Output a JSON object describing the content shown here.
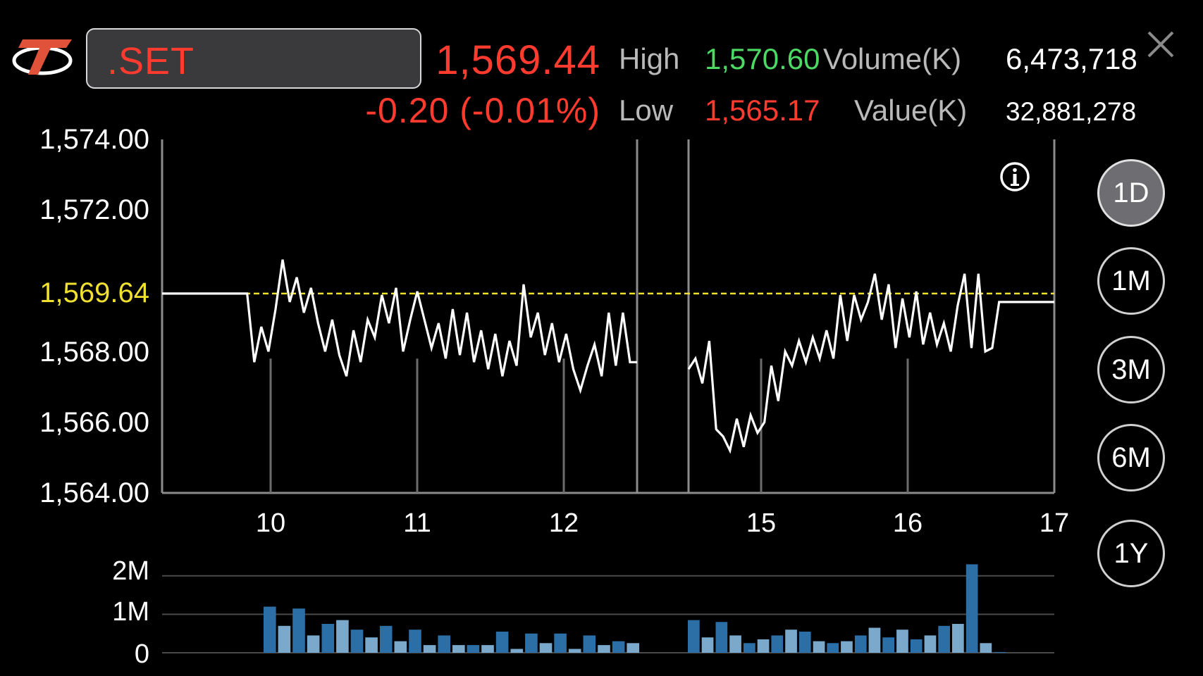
{
  "header": {
    "logo_icon": "settrade-logo",
    "symbol": ".SET",
    "last_price": "1,569.44",
    "change": "-0.20 (-0.01%)",
    "high_label": "High",
    "high_value": "1,570.60",
    "low_label": "Low",
    "low_value": "1,565.17",
    "volume_label": "Volume(K)",
    "volume_value": "6,473,718",
    "value_label": "Value(K)",
    "value_value": "32,881,278",
    "close_icon": "close-icon"
  },
  "colors": {
    "up": "#4cd964",
    "down": "#ff3b30",
    "prev_close": "#f0e130",
    "line": "#ffffff",
    "vol_dark": "#2c6fa6",
    "vol_light": "#7aa9cc"
  },
  "chart_data": [
    {
      "type": "line",
      "x_tick_labels": [
        "10",
        "11",
        "12",
        "15",
        "16",
        "17"
      ],
      "y_tick_labels": [
        "1,574.00",
        "1,572.00",
        "1,569.64",
        "1,568.00",
        "1,566.00",
        "1,564.00"
      ],
      "ylim": [
        1564,
        1574
      ],
      "reference_line": {
        "label": "1,569.64",
        "value": 1569.64
      },
      "series": [
        {
          "segment": "morning",
          "values": [
            1569.64,
            1569.64,
            1569.64,
            1569.64,
            1569.64,
            1569.64,
            1569.64,
            1569.64,
            1569.64,
            1569.64,
            1569.64,
            1569.64,
            1569.64,
            1567.7,
            1568.7,
            1568.0,
            1569.2,
            1570.6,
            1569.4,
            1570.1,
            1569.1,
            1569.8,
            1568.8,
            1568.0,
            1568.9,
            1567.9,
            1567.3,
            1568.6,
            1567.7,
            1568.9,
            1568.4,
            1569.6,
            1568.8,
            1569.8,
            1568.0,
            1568.9,
            1569.7,
            1568.9,
            1568.1,
            1568.8,
            1567.8,
            1569.2,
            1567.9,
            1569.1,
            1567.7,
            1568.6,
            1567.5,
            1568.5,
            1567.3,
            1568.3,
            1567.6,
            1569.9,
            1568.4,
            1569.1,
            1567.9,
            1568.8,
            1567.7,
            1568.5,
            1567.5,
            1566.9,
            1567.6,
            1568.2,
            1567.3,
            1569.1,
            1567.6,
            1569.1,
            1567.7,
            1567.7
          ]
        },
        {
          "segment": "afternoon",
          "values": [
            1567.5,
            1567.8,
            1567.1,
            1568.3,
            1565.8,
            1565.6,
            1565.2,
            1566.1,
            1565.3,
            1566.2,
            1565.7,
            1566.0,
            1567.6,
            1566.6,
            1568.0,
            1567.6,
            1568.3,
            1567.7,
            1568.4,
            1567.8,
            1568.6,
            1567.8,
            1569.6,
            1568.3,
            1569.6,
            1568.9,
            1569.4,
            1570.2,
            1568.9,
            1569.9,
            1568.1,
            1569.5,
            1568.4,
            1569.7,
            1568.2,
            1569.1,
            1568.2,
            1568.8,
            1568.0,
            1569.3,
            1570.2,
            1568.1,
            1570.2,
            1568.0,
            1568.1,
            1569.4,
            1569.4,
            1569.4,
            1569.4,
            1569.4,
            1569.4,
            1569.4,
            1569.4,
            1569.4
          ]
        }
      ]
    },
    {
      "type": "bar",
      "y_tick_labels": [
        "2M",
        "1M",
        "0"
      ],
      "ylim": [
        0,
        2.6
      ],
      "series": [
        {
          "segment": "morning",
          "values": [
            1.2,
            0.7,
            1.15,
            0.45,
            0.75,
            0.85,
            0.6,
            0.4,
            0.7,
            0.3,
            0.6,
            0.2,
            0.45,
            0.2,
            0.2,
            0.2,
            0.55,
            0.1,
            0.5,
            0.25,
            0.5,
            0.1,
            0.45,
            0.2,
            0.3,
            0.25
          ]
        },
        {
          "segment": "afternoon",
          "values": [
            0.85,
            0.4,
            0.8,
            0.45,
            0.25,
            0.35,
            0.45,
            0.6,
            0.55,
            0.3,
            0.25,
            0.3,
            0.45,
            0.65,
            0.4,
            0.6,
            0.35,
            0.45,
            0.7,
            0.75,
            2.3,
            0.25,
            0.02
          ]
        }
      ]
    }
  ],
  "periods": [
    {
      "label": "1D",
      "active": true
    },
    {
      "label": "1M",
      "active": false
    },
    {
      "label": "3M",
      "active": false
    },
    {
      "label": "6M",
      "active": false
    },
    {
      "label": "1Y",
      "active": false
    }
  ],
  "info_icon": "info-icon"
}
